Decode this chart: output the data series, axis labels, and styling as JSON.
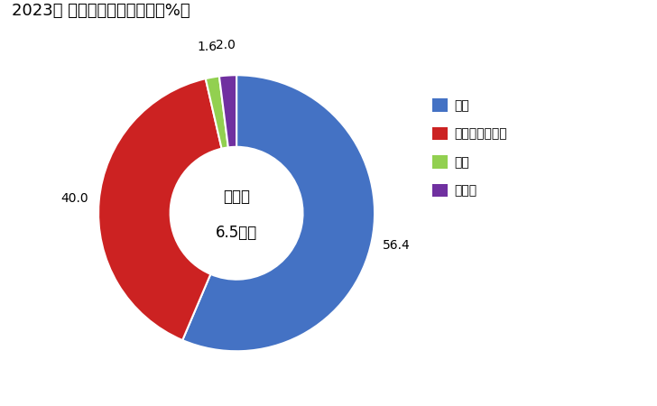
{
  "title": "2023年 輸出相手国のシェア（%）",
  "labels": [
    "米国",
    "サウジアラビア",
    "中国",
    "その他"
  ],
  "values": [
    56.4,
    40.0,
    1.6,
    2.0
  ],
  "colors": [
    "#4472C4",
    "#CC2222",
    "#92D050",
    "#7030A0"
  ],
  "center_text_line1": "総　額",
  "center_text_line2": "6.5億円",
  "title_fontsize": 13,
  "label_fontsize": 10,
  "legend_fontsize": 10,
  "bg_color": "#E8E8E8"
}
